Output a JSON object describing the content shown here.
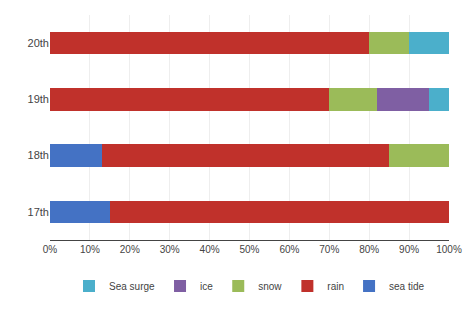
{
  "chart_data": {
    "type": "bar",
    "orientation": "horizontal",
    "stacked": true,
    "categories": [
      "17th",
      "18th",
      "19th",
      "20th"
    ],
    "series": [
      {
        "name": "sea tide",
        "color": "#4472C4",
        "values": [
          15,
          13,
          0,
          0
        ]
      },
      {
        "name": "rain",
        "color": "#C0312B",
        "values": [
          85,
          72,
          70,
          80
        ]
      },
      {
        "name": "snow",
        "color": "#9BBB59",
        "values": [
          0,
          15,
          12,
          10
        ]
      },
      {
        "name": "ice",
        "color": "#7F5FA3",
        "values": [
          0,
          0,
          13,
          0
        ]
      },
      {
        "name": "Sea surge",
        "color": "#4BAFCB",
        "values": [
          0,
          0,
          5,
          10
        ]
      }
    ],
    "xlim": [
      0,
      100
    ],
    "xticks": [
      {
        "value": 0,
        "label": "0%"
      },
      {
        "value": 10,
        "label": "10%"
      },
      {
        "value": 20,
        "label": "20%"
      },
      {
        "value": 30,
        "label": "30%"
      },
      {
        "value": 40,
        "label": "40%"
      },
      {
        "value": 50,
        "label": "50%"
      },
      {
        "value": 60,
        "label": "60%"
      },
      {
        "value": 70,
        "label": "70%"
      },
      {
        "value": 80,
        "label": "80%"
      },
      {
        "value": 90,
        "label": "90%"
      },
      {
        "value": 100,
        "label": "100%"
      }
    ],
    "grid": true,
    "legend": "bottom"
  }
}
